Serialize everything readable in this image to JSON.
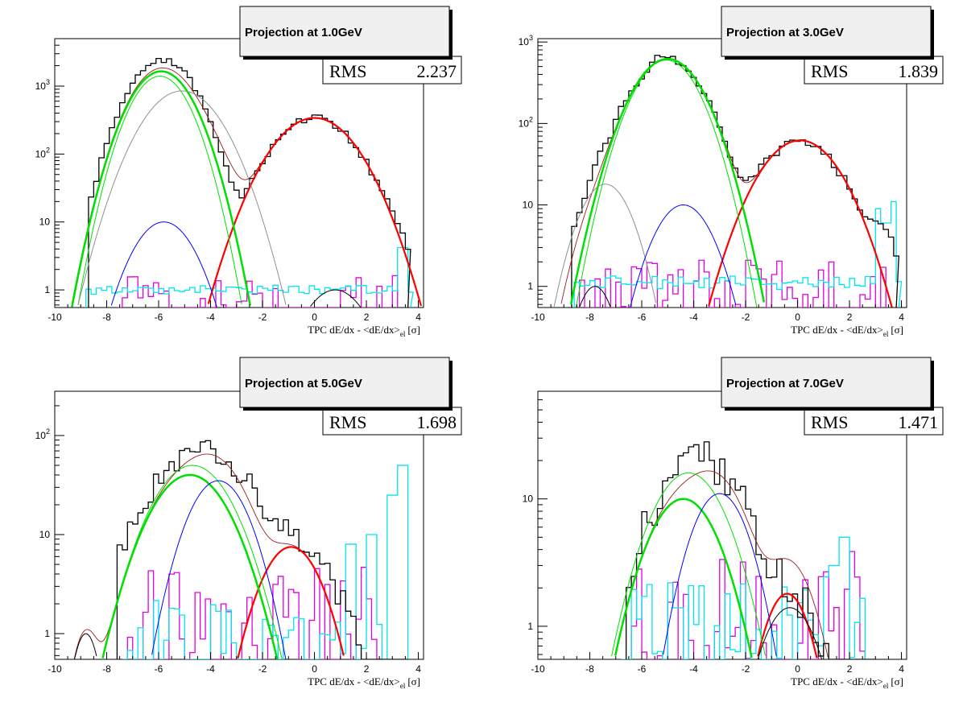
{
  "chart_data": [
    {
      "type": "histogram",
      "title": "Projection at 1.0GeV",
      "stats": {
        "rms_label": "RMS",
        "rms_value": "2.237"
      },
      "xlabel_main": "TPC dE/dx - <dE/dx>",
      "xlabel_sub": "el",
      "xlabel_unit": "[σ]",
      "xlim": [
        -10,
        4.2
      ],
      "ylim": [
        0.55,
        5000
      ],
      "log_y": true,
      "x_ticks": [
        -10,
        -8,
        -6,
        -4,
        -2,
        0,
        2,
        4
      ],
      "y_ticks": [
        {
          "v": 1,
          "label": "1"
        },
        {
          "v": 10,
          "label": "10"
        },
        {
          "v": 100,
          "label": "10^2"
        },
        {
          "v": 1000,
          "label": "10^3"
        }
      ],
      "colors": {
        "data": "#000000",
        "electron": "#ff0000",
        "pion": "#00e000",
        "kaon": "#0000ff",
        "proton": "#000000",
        "cyan": "#00e5ee",
        "magenta": "#e000e0",
        "sum": "#9b1c1c",
        "grey": "#909090"
      },
      "gauss": [
        {
          "name": "electron",
          "A": 340,
          "mu": 0.0,
          "s": 1.15,
          "color": "#ff0000",
          "width": 2.2
        },
        {
          "name": "pion",
          "A": 1650,
          "mu": -5.9,
          "s": 0.86,
          "color": "#00e000",
          "width": 2.5
        },
        {
          "name": "pion2",
          "A": 1400,
          "mu": -5.95,
          "s": 0.8,
          "color": "#00e000",
          "width": 1
        },
        {
          "name": "grey",
          "A": 850,
          "mu": -5.1,
          "s": 1.05,
          "color": "#909090",
          "width": 1
        },
        {
          "name": "kaon",
          "A": 10,
          "mu": -5.8,
          "s": 0.85,
          "color": "#0000ff",
          "width": 1
        },
        {
          "name": "proton",
          "A": 1.0,
          "mu": 0.8,
          "s": 0.9,
          "color": "#000000",
          "width": 1
        }
      ],
      "data_hist": {
        "bins": [
          -8.7,
          3.6
        ],
        "width": 0.2,
        "comps": [
          [
            340,
            0.0,
            1.15
          ],
          [
            2400,
            -5.85,
            0.9
          ],
          [
            3,
            3.0,
            0.6
          ]
        ],
        "jitter": 0.12
      },
      "cyan_hist": {
        "bins": [
          -8.8,
          3.7
        ],
        "width": 0.2,
        "level": 1.0,
        "jitter": 0.08,
        "spikes": [
          [
            3.4,
            4.2
          ]
        ]
      },
      "magenta_hist": {
        "bins": [
          -7.6,
          3.2
        ],
        "width": 0.2,
        "level": 0.75,
        "jitter": 0.35
      }
    },
    {
      "type": "histogram",
      "title": "Projection at 3.0GeV",
      "stats": {
        "rms_label": "RMS",
        "rms_value": "1.839"
      },
      "xlabel_main": "TPC dE/dx - <dE/dx>",
      "xlabel_sub": "el",
      "xlabel_unit": "[σ]",
      "xlim": [
        -10,
        4.2
      ],
      "ylim": [
        0.55,
        1100
      ],
      "log_y": true,
      "x_ticks": [
        -10,
        -8,
        -6,
        -4,
        -2,
        0,
        2,
        4
      ],
      "y_ticks": [
        {
          "v": 1,
          "label": "1"
        },
        {
          "v": 10,
          "label": "10"
        },
        {
          "v": 100,
          "label": "10^2"
        },
        {
          "v": 1000,
          "label": "10^3"
        }
      ],
      "colors": {
        "data": "#000000",
        "electron": "#ff0000",
        "pion": "#00e000",
        "kaon": "#0000ff",
        "proton": "#000000",
        "cyan": "#00e5ee",
        "magenta": "#e000e0",
        "sum": "#9b1c1c",
        "grey": "#909090"
      },
      "gauss": [
        {
          "name": "electron",
          "A": 62,
          "mu": 0.1,
          "s": 1.15,
          "color": "#ff0000",
          "width": 2.2
        },
        {
          "name": "pion",
          "A": 620,
          "mu": -5.0,
          "s": 1.0,
          "color": "#00e000",
          "width": 2.5
        },
        {
          "name": "pion2",
          "A": 600,
          "mu": -5.05,
          "s": 0.93,
          "color": "#00e000",
          "width": 1
        },
        {
          "name": "grey",
          "A": 18,
          "mu": -7.4,
          "s": 0.75,
          "color": "#909090",
          "width": 1
        },
        {
          "name": "kaon",
          "A": 10,
          "mu": -4.4,
          "s": 0.85,
          "color": "#0000ff",
          "width": 1
        },
        {
          "name": "proton",
          "A": 1.0,
          "mu": -7.8,
          "s": 0.55,
          "color": "#000000",
          "width": 1
        }
      ],
      "data_hist": {
        "bins": [
          -8.7,
          3.8
        ],
        "width": 0.2,
        "comps": [
          [
            62,
            0.1,
            1.15
          ],
          [
            640,
            -5.0,
            1.0
          ],
          [
            20,
            -7.3,
            0.75
          ],
          [
            4,
            3.2,
            0.5
          ]
        ],
        "jitter": 0.15
      },
      "cyan_hist": {
        "bins": [
          -8.6,
          3.9
        ],
        "width": 0.2,
        "level": 1.1,
        "jitter": 0.1,
        "spikes": [
          [
            3.6,
            11
          ],
          [
            3.2,
            9
          ],
          [
            3.4,
            6
          ]
        ]
      },
      "magenta_hist": {
        "bins": [
          -8.4,
          3.4
        ],
        "width": 0.2,
        "level": 0.9,
        "jitter": 0.4
      }
    },
    {
      "type": "histogram",
      "title": "Projection at 5.0GeV",
      "stats": {
        "rms_label": "RMS",
        "rms_value": "1.698"
      },
      "xlabel_main": "TPC dE/dx - <dE/dx>",
      "xlabel_sub": "el",
      "xlabel_unit": "[σ]",
      "xlim": [
        -10,
        4.2
      ],
      "ylim": [
        0.55,
        280
      ],
      "log_y": true,
      "x_ticks": [
        -10,
        -8,
        -6,
        -4,
        -2,
        0,
        2,
        4
      ],
      "y_ticks": [
        {
          "v": 1,
          "label": "1"
        },
        {
          "v": 10,
          "label": "10"
        },
        {
          "v": 100,
          "label": "10^2"
        }
      ],
      "colors": {
        "data": "#000000",
        "electron": "#ff0000",
        "pion": "#00e000",
        "kaon": "#0000ff",
        "proton": "#000000",
        "cyan": "#00e5ee",
        "magenta": "#e000e0",
        "sum": "#9b1c1c",
        "grey": "#909090"
      },
      "gauss": [
        {
          "name": "electron",
          "A": 7.5,
          "mu": -0.9,
          "s": 0.9,
          "color": "#ff0000",
          "width": 2.2
        },
        {
          "name": "pion",
          "A": 40,
          "mu": -4.8,
          "s": 1.15,
          "color": "#00e000",
          "width": 2.5
        },
        {
          "name": "pion2",
          "A": 50,
          "mu": -4.7,
          "s": 1.15,
          "color": "#00e000",
          "width": 1
        },
        {
          "name": "kaon",
          "A": 35,
          "mu": -3.7,
          "s": 0.9,
          "color": "#0000ff",
          "width": 1
        },
        {
          "name": "proton",
          "A": 1.0,
          "mu": -8.8,
          "s": 0.4,
          "color": "#000000",
          "width": 1
        }
      ],
      "data_hist": {
        "bins": [
          -7.6,
          3.6
        ],
        "width": 0.2,
        "comps": [
          [
            70,
            -4.4,
            1.4
          ],
          [
            7,
            -0.8,
            1.2
          ]
        ],
        "jitter": 0.3
      },
      "cyan_hist": {
        "bins": [
          -7.4,
          3.6
        ],
        "width": 0.2,
        "level": 0.8,
        "jitter": 0.5,
        "spikes": [
          [
            3.2,
            85
          ],
          [
            3.0,
            25
          ],
          [
            3.4,
            50
          ],
          [
            2.2,
            10
          ],
          [
            1.4,
            8
          ]
        ]
      },
      "magenta_hist": {
        "bins": [
          -7.4,
          2.6
        ],
        "width": 0.2,
        "level": 1.5,
        "jitter": 0.6
      }
    },
    {
      "type": "histogram",
      "title": "Projection at 7.0GeV",
      "stats": {
        "rms_label": "RMS",
        "rms_value": "1.471"
      },
      "xlabel_main": "TPC dE/dx - <dE/dx>",
      "xlabel_sub": "el",
      "xlabel_unit": "[σ]",
      "xlim": [
        -10,
        4.2
      ],
      "ylim": [
        0.55,
        70
      ],
      "log_y": true,
      "x_ticks": [
        -10,
        -8,
        -6,
        -4,
        -2,
        0,
        2,
        4
      ],
      "y_ticks": [
        {
          "v": 1,
          "label": "1"
        },
        {
          "v": 10,
          "label": "10"
        }
      ],
      "colors": {
        "data": "#000000",
        "electron": "#ff0000",
        "pion": "#00e000",
        "kaon": "#0000ff",
        "proton": "#000000",
        "cyan": "#00e5ee",
        "magenta": "#e000e0",
        "sum": "#9b1c1c",
        "grey": "#909090"
      },
      "gauss": [
        {
          "name": "electron",
          "A": 1.8,
          "mu": -0.4,
          "s": 0.75,
          "color": "#ff0000",
          "width": 2.2
        },
        {
          "name": "pion",
          "A": 10,
          "mu": -4.4,
          "s": 1.1,
          "color": "#00e000",
          "width": 2.5
        },
        {
          "name": "pion2",
          "A": 16,
          "mu": -4.2,
          "s": 1.15,
          "color": "#00e000",
          "width": 1
        },
        {
          "name": "kaon",
          "A": 11,
          "mu": -3.0,
          "s": 0.9,
          "color": "#0000ff",
          "width": 1
        },
        {
          "name": "proton",
          "A": 1.4,
          "mu": -0.3,
          "s": 0.9,
          "color": "#000000",
          "width": 1
        }
      ],
      "data_hist": {
        "bins": [
          -6.6,
          3.0
        ],
        "width": 0.2,
        "comps": [
          [
            20,
            -3.8,
            1.3
          ],
          [
            1.6,
            -0.3,
            0.9
          ]
        ],
        "jitter": 0.4
      },
      "cyan_hist": {
        "bins": [
          -6.8,
          2.6
        ],
        "width": 0.2,
        "level": 0.9,
        "jitter": 0.5,
        "spikes": [
          [
            1.8,
            5
          ],
          [
            1.4,
            3
          ]
        ]
      },
      "magenta_hist": {
        "bins": [
          -6.4,
          2.6
        ],
        "width": 0.2,
        "level": 1.2,
        "jitter": 0.6
      }
    }
  ]
}
